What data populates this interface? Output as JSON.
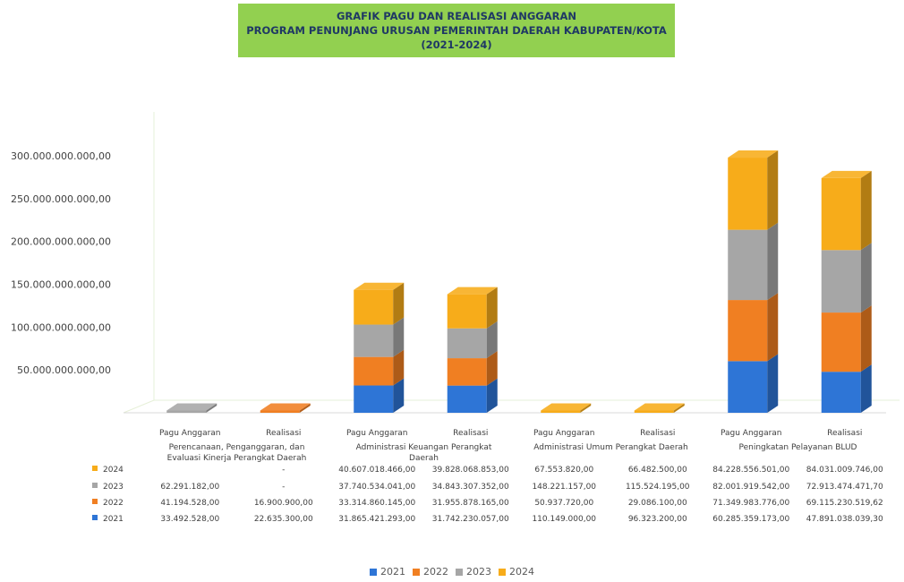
{
  "title": {
    "line1": "GRAFIK PAGU DAN REALISASI ANGGARAN",
    "line2": "PROGRAM PENUNJANG URUSAN PEMERINTAH DAERAH KABUPATEN/KOTA",
    "line3": "(2021-2024)"
  },
  "colors": {
    "2021": "#2e75d6",
    "2022": "#f07f22",
    "2023": "#a6a6a6",
    "2024": "#f7ac1a"
  },
  "chart_data": {
    "type": "bar",
    "stacked": true,
    "three_d": true,
    "ylim": [
      0,
      300000000000
    ],
    "yticks": [
      {
        "value": 50000000000,
        "label": "50.000.000.000,00"
      },
      {
        "value": 100000000000,
        "label": "100.000.000.000,00"
      },
      {
        "value": 150000000000,
        "label": "150.000.000.000,00"
      },
      {
        "value": 200000000000,
        "label": "200.000.000.000,00"
      },
      {
        "value": 250000000000,
        "label": "250.000.000.000,00"
      },
      {
        "value": 300000000000,
        "label": "300.000.000.000,00"
      }
    ],
    "groups": [
      {
        "name": "Perencanaan, Penganggaran, dan Evaluasi Kinerja Perangkat Daerah",
        "lines": [
          "Perencanaan, Penganggaran, dan",
          "Evaluasi Kinerja Perangkat Daerah"
        ]
      },
      {
        "name": "Administrasi Keuangan Perangkat Daerah",
        "lines": [
          "Administrasi Keuangan Perangkat",
          "Daerah"
        ]
      },
      {
        "name": "Administrasi Umum Perangkat Daerah",
        "lines": [
          "Administrasi Umum Perangkat Daerah"
        ]
      },
      {
        "name": "Peningkatan Pelayanan BLUD",
        "lines": [
          "Peningkatan Pelayanan BLUD"
        ]
      }
    ],
    "categories": [
      "Pagu Anggaran",
      "Realisasi",
      "Pagu Anggaran",
      "Realisasi",
      "Pagu Anggaran",
      "Realisasi",
      "Pagu Anggaran",
      "Realisasi"
    ],
    "series": [
      {
        "name": "2021",
        "values": [
          33492528,
          22635300,
          31865421293,
          31742230057,
          110149000,
          96323200,
          60285359173,
          47891038039.3
        ],
        "labels": [
          "33.492.528,00",
          "22.635.300,00",
          "31.865.421.293,00",
          "31.742.230.057,00",
          "110.149.000,00",
          "96.323.200,00",
          "60.285.359.173,00",
          "47.891.038.039,30"
        ]
      },
      {
        "name": "2022",
        "values": [
          41194528,
          16900900,
          33314860145,
          31955878165,
          50937720,
          29086100,
          71349983776,
          69115230519.62
        ],
        "labels": [
          "41.194.528,00",
          "16.900.900,00",
          "33.314.860.145,00",
          "31.955.878.165,00",
          "50.937.720,00",
          "29.086.100,00",
          "71.349.983.776,00",
          "69.115.230.519,62"
        ]
      },
      {
        "name": "2023",
        "values": [
          62291182,
          null,
          37740534041,
          34843307352,
          148221157,
          115524195,
          82001919542,
          72913474471.7
        ],
        "labels": [
          "62.291.182,00",
          "-",
          "37.740.534.041,00",
          "34.843.307.352,00",
          "148.221.157,00",
          "115.524.195,00",
          "82.001.919.542,00",
          "72.913.474.471,70"
        ]
      },
      {
        "name": "2024",
        "values": [
          null,
          null,
          40607018466,
          39828068853,
          67553820,
          66482500,
          84228556501,
          84031009746
        ],
        "labels": [
          "",
          "-",
          "40.607.018.466,00",
          "39.828.068.853,00",
          "67.553.820,00",
          "66.482.500,00",
          "84.228.556.501,00",
          "84.031.009.746,00"
        ]
      }
    ],
    "legend": [
      "2021",
      "2022",
      "2023",
      "2024"
    ],
    "legend_position": "bottom",
    "grid": false,
    "data_table": true
  }
}
